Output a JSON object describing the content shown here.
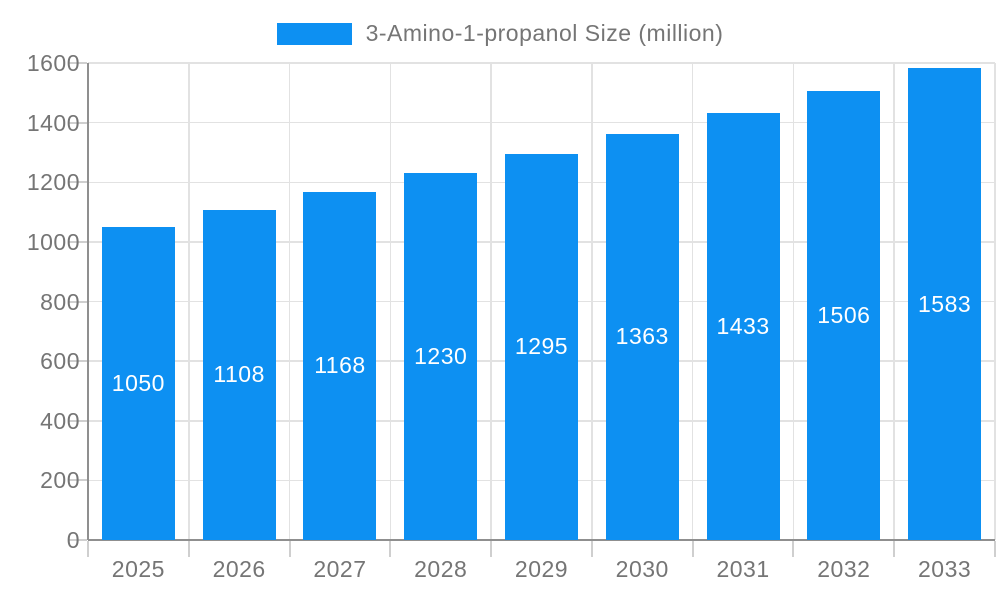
{
  "chart_data": {
    "type": "bar",
    "title": "3-Amino-1-propanol Size (million)",
    "legend": {
      "position": "top",
      "entries": [
        "3-Amino-1-propanol Size (million)"
      ]
    },
    "categories": [
      "2025",
      "2026",
      "2027",
      "2028",
      "2029",
      "2030",
      "2031",
      "2032",
      "2033"
    ],
    "series": [
      {
        "name": "3-Amino-1-propanol Size (million)",
        "values": [
          1050,
          1108,
          1168,
          1230,
          1295,
          1363,
          1433,
          1506,
          1583
        ],
        "bar_labels": [
          "1050",
          "1108",
          "1168",
          "1230",
          "1295",
          "1363",
          "1433",
          "1506",
          "1583"
        ]
      }
    ],
    "xlabel": "",
    "ylabel": "",
    "ylim": [
      0,
      1600
    ],
    "ytick_step": 200,
    "ytick_labels": [
      "0",
      "200",
      "400",
      "600",
      "800",
      "1000",
      "1200",
      "1400",
      "1600"
    ],
    "grid": true,
    "colors": {
      "bar": "#0d90f2",
      "axis_text": "#757575",
      "grid_line": "#e2e2e2",
      "axis_line": "#8f8f8f",
      "tick_line": "#cfcfcf",
      "bar_label_text": "#ffffff",
      "background": "#ffffff"
    }
  }
}
